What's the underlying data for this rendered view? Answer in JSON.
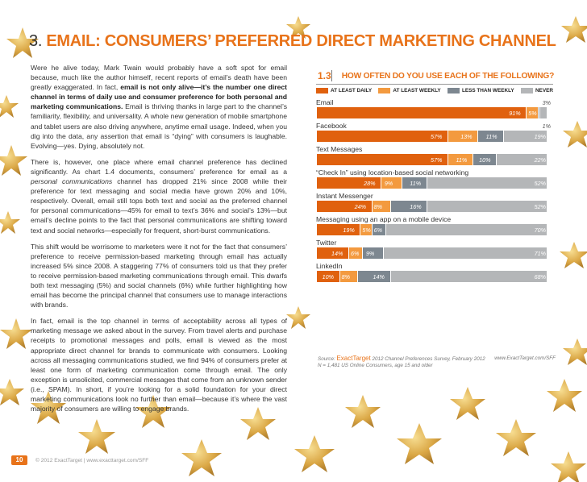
{
  "page": {
    "section_number": "3.",
    "section_title": "EMAIL: CONSUMERS’ PREFERRED DIRECT MARKETING CHANNEL"
  },
  "body": {
    "p1_a": "Were he alive today, Mark Twain would probably have a soft spot for email because, much like the author himself, recent reports of email’s death have been greatly exaggerated. In fact, ",
    "p1_b": "email is not only alive—it’s the number one direct channel in terms of daily use and consumer preference for both personal and marketing communications.",
    "p1_c": " Email is thriving thanks in large part to the channel’s familiarity, flexibility, and universality. A whole new generation of mobile smartphone and tablet users are also driving anywhere, anytime email usage. Indeed, when you dig into the data, any assertion that email is “dying” with consumers is laughable. Evolving—yes. Dying, absolutely not.",
    "p2_a": "There is, however, one place where email channel preference has declined significantly. As chart 1.4 documents, consumers’ preference for email as a ",
    "p2_b": "personal communications",
    "p2_c": " channel has dropped 21% since 2008 while their preference for text messaging and social media have grown 20% and 10%, respectively. Overall, email still tops both text and social as the preferred channel for personal communications—45% for email to text’s 36% and social’s 13%—but email’s decline points to the fact that personal communications are shifting toward text and social networks—especially for frequent, short-burst communications.",
    "p3": "This shift would be worrisome to marketers were it not for the fact that consumers’ preference to receive permission-based marketing through email has actually increased 5% since 2008. A staggering 77% of consumers told us that they prefer to receive permission-based marketing communications through email. This dwarfs both text messaging (5%) and social channels (6%) while further highlighting how email has become the principal channel that consumers use to manage interactions with brands.",
    "p4": "In fact, email is the top channel in terms of acceptability across all types of marketing message we asked about in the survey. From travel alerts and purchase receipts to promotional messages and polls, email is viewed as the most appropriate direct channel for brands to communicate with consumers. Looking across all messaging communications studied, we find 94% of consumers prefer at least one form of marketing communication come through email. The only exception is unsolicited, commercial messages that come from an unknown sender (i.e., SPAM). In short, if you’re looking for a solid foundation for your direct marketing communications look no further than email—because it’s where the vast majority of consumers are willing to engage brands."
  },
  "chart_data": {
    "type": "bar",
    "stacked": true,
    "number": "1.3",
    "title": "HOW OFTEN DO YOU USE EACH OF THE FOLLOWING?",
    "legend_position": "top",
    "series": [
      {
        "name": "AT LEAST DAILY",
        "color": "#e0610e"
      },
      {
        "name": "AT LEAST WEEKLY",
        "color": "#f39a3f"
      },
      {
        "name": "LESS THAN WEEKLY",
        "color": "#7d8790"
      },
      {
        "name": "NEVER",
        "color": "#b4b6b8"
      }
    ],
    "categories": [
      {
        "label": "Email",
        "values": [
          91,
          5,
          1,
          3
        ],
        "labels": [
          "91%",
          "5%",
          "",
          "3%"
        ]
      },
      {
        "label": "Facebook",
        "values": [
          57,
          13,
          11,
          19
        ],
        "labels": [
          "57%",
          "13%",
          "11%",
          "19%"
        ],
        "extra": "1%"
      },
      {
        "label": "Text Messages",
        "values": [
          57,
          11,
          10,
          22
        ],
        "labels": [
          "57%",
          "11%",
          "10%",
          "22%"
        ]
      },
      {
        "label": "“Check In” using location-based social networking",
        "values": [
          28,
          9,
          11,
          52
        ],
        "labels": [
          "28%",
          "9%",
          "11%",
          "52%"
        ]
      },
      {
        "label": "Instant Messenger",
        "values": [
          24,
          8,
          16,
          52
        ],
        "labels": [
          "24%",
          "8%",
          "16%",
          "52%"
        ]
      },
      {
        "label": "Messaging using an app on a mobile device",
        "values": [
          19,
          5,
          6,
          70
        ],
        "labels": [
          "19%",
          "5%",
          "6%",
          "70%"
        ]
      },
      {
        "label": "Twitter",
        "values": [
          14,
          6,
          9,
          71
        ],
        "labels": [
          "14%",
          "6%",
          "9%",
          "71%"
        ]
      },
      {
        "label": "LinkedIn",
        "values": [
          10,
          8,
          14,
          68
        ],
        "labels": [
          "10%",
          "8%",
          "14%",
          "68%"
        ]
      }
    ],
    "source_prefix": "Source:",
    "source_brand": "ExactTarget",
    "source_text": "2012 Channel Preferences Survey, February 2012",
    "source_url": "www.ExactTarget.com/SFF",
    "source_note": "N = 1,481 US Online Consumers, age 15 and older"
  },
  "footer": {
    "page_number": "10",
    "copyright": "© 2012 ExactTarget | www.exacttarget.com/SFF"
  }
}
